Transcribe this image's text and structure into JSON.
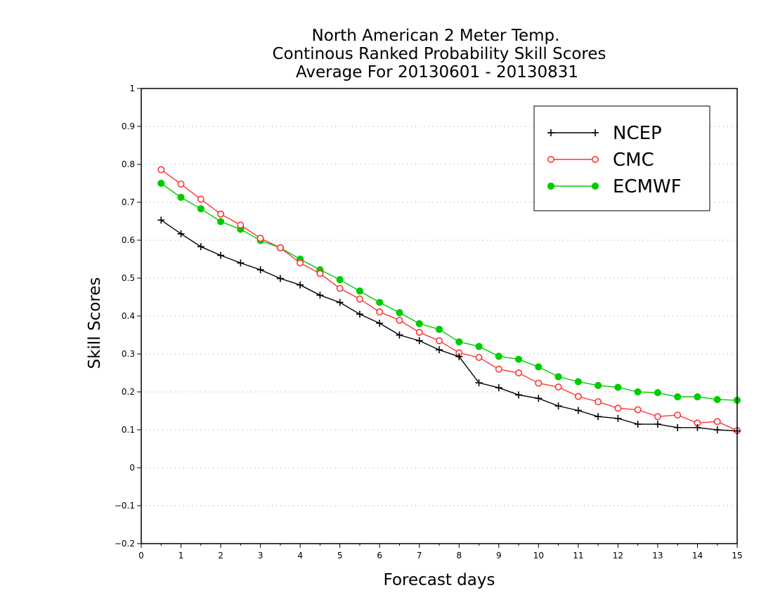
{
  "chart_data": {
    "type": "line",
    "title_lines": [
      "North American 2 Meter Temp.",
      "Continous Ranked Probability Skill Scores",
      "Average For 20130601 - 20130831"
    ],
    "xlabel": "Forecast days",
    "ylabel": "Skill Scores",
    "xlim": [
      0,
      15
    ],
    "ylim": [
      -0.2,
      1
    ],
    "x_ticks": [
      "0",
      "1",
      "2",
      "3",
      "4",
      "5",
      "6",
      "7",
      "8",
      "9",
      "10",
      "11",
      "12",
      "13",
      "14",
      "15"
    ],
    "y_ticks": [
      "−0.2",
      "−0.1",
      "0",
      "0.1",
      "0.2",
      "0.3",
      "0.4",
      "0.5",
      "0.6",
      "0.7",
      "0.8",
      "0.9",
      "1"
    ],
    "grid": "horizontal dotted",
    "legend_position": "top-right",
    "x": [
      0.5,
      1,
      1.5,
      2,
      2.5,
      3,
      3.5,
      4,
      4.5,
      5,
      5.5,
      6,
      6.5,
      7,
      7.5,
      8,
      8.5,
      9,
      9.5,
      10,
      10.5,
      11,
      11.5,
      12,
      12.5,
      13,
      13.5,
      14,
      14.5,
      15
    ],
    "series": [
      {
        "name": "NCEP",
        "color": "#000000",
        "marker": "plus",
        "values": [
          0.653,
          0.617,
          0.583,
          0.56,
          0.54,
          0.522,
          0.499,
          0.482,
          0.455,
          0.436,
          0.405,
          0.381,
          0.35,
          0.335,
          0.311,
          0.293,
          0.224,
          0.211,
          0.192,
          0.183,
          0.163,
          0.151,
          0.135,
          0.13,
          0.115,
          0.115,
          0.106,
          0.106,
          0.1,
          0.097
        ]
      },
      {
        "name": "CMC",
        "color": "#ff3333",
        "marker": "open-circle",
        "values": [
          0.786,
          0.748,
          0.708,
          0.669,
          0.64,
          0.605,
          0.58,
          0.54,
          0.512,
          0.473,
          0.445,
          0.411,
          0.389,
          0.357,
          0.335,
          0.303,
          0.291,
          0.26,
          0.25,
          0.223,
          0.213,
          0.188,
          0.174,
          0.157,
          0.153,
          0.135,
          0.139,
          0.118,
          0.122,
          0.098
        ]
      },
      {
        "name": "ECMWF",
        "color": "#00cc00",
        "marker": "filled-circle",
        "values": [
          0.75,
          0.713,
          0.683,
          0.649,
          0.629,
          0.599,
          0.58,
          0.55,
          0.522,
          0.496,
          0.466,
          0.436,
          0.409,
          0.38,
          0.365,
          0.332,
          0.32,
          0.294,
          0.286,
          0.266,
          0.24,
          0.227,
          0.217,
          0.212,
          0.2,
          0.198,
          0.187,
          0.187,
          0.18,
          0.178
        ]
      }
    ]
  }
}
